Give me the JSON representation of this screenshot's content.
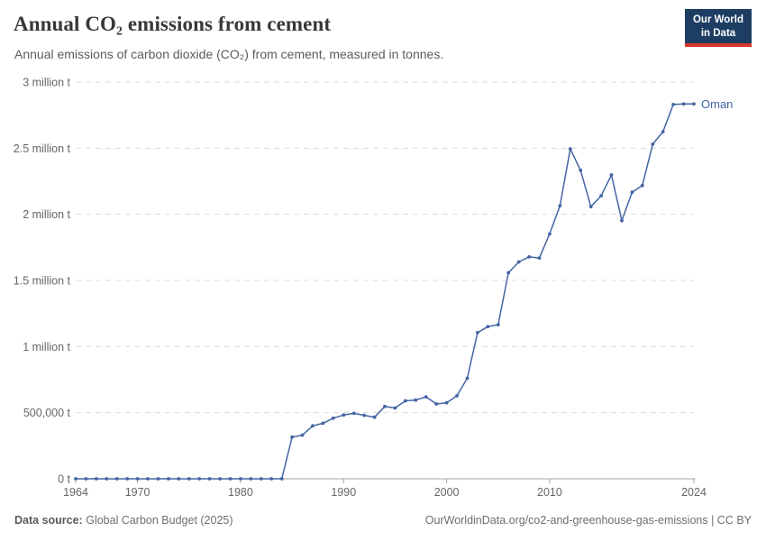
{
  "header": {
    "title": "Annual CO₂ emissions from cement",
    "subtitle": "Annual emissions of carbon dioxide (CO₂) from cement, measured in tonnes."
  },
  "logo": {
    "line1": "Our World",
    "line2": "in Data",
    "bg_color": "#1d3d63",
    "accent_color": "#d7352a"
  },
  "chart_data": {
    "type": "line",
    "title": "Annual CO₂ emissions from cement",
    "entity": "Oman",
    "unit": "tonnes",
    "line_color": "#4464a3",
    "grid": true,
    "legend_position": "end-of-line-label",
    "end_label": "Oman",
    "xlim": [
      1964,
      2024
    ],
    "ylim": [
      0,
      3000000
    ],
    "x_ticks": [
      1964,
      1970,
      1980,
      1990,
      2000,
      2010,
      2024
    ],
    "y_ticks": [
      {
        "value": 0,
        "label": "0 t"
      },
      {
        "value": 500000,
        "label": "500,000 t"
      },
      {
        "value": 1000000,
        "label": "1 million t"
      },
      {
        "value": 1500000,
        "label": "1.5 million t"
      },
      {
        "value": 2000000,
        "label": "2 million t"
      },
      {
        "value": 2500000,
        "label": "2.5 million t"
      },
      {
        "value": 3000000,
        "label": "3 million t"
      }
    ],
    "x": [
      1964,
      1965,
      1966,
      1967,
      1968,
      1969,
      1970,
      1971,
      1972,
      1973,
      1974,
      1975,
      1976,
      1977,
      1978,
      1979,
      1980,
      1981,
      1982,
      1983,
      1984,
      1985,
      1986,
      1987,
      1988,
      1989,
      1990,
      1991,
      1992,
      1993,
      1994,
      1995,
      1996,
      1997,
      1998,
      1999,
      2000,
      2001,
      2002,
      2003,
      2004,
      2005,
      2006,
      2007,
      2008,
      2009,
      2010,
      2011,
      2012,
      2013,
      2014,
      2015,
      2016,
      2017,
      2018,
      2019,
      2020,
      2021,
      2022,
      2023,
      2024
    ],
    "series": [
      {
        "name": "Oman",
        "values": [
          0,
          0,
          0,
          0,
          0,
          0,
          0,
          0,
          0,
          0,
          0,
          0,
          0,
          0,
          0,
          0,
          0,
          0,
          0,
          0,
          0,
          315000,
          330000,
          400000,
          420000,
          458000,
          482000,
          495000,
          480000,
          466000,
          547000,
          535000,
          590000,
          595000,
          620000,
          566000,
          575000,
          627000,
          760000,
          1105000,
          1150000,
          1165000,
          1558000,
          1640000,
          1678000,
          1670000,
          1852000,
          2065000,
          2494000,
          2333000,
          2058000,
          2140000,
          2298000,
          1952000,
          2167000,
          2218000,
          2530000,
          2625000,
          2830000,
          2834000,
          2834000
        ]
      }
    ]
  },
  "footer": {
    "source_label": "Data source:",
    "source": "Global Carbon Budget (2025)",
    "link": "OurWorldinData.org/co2-and-greenhouse-gas-emissions | CC BY"
  }
}
